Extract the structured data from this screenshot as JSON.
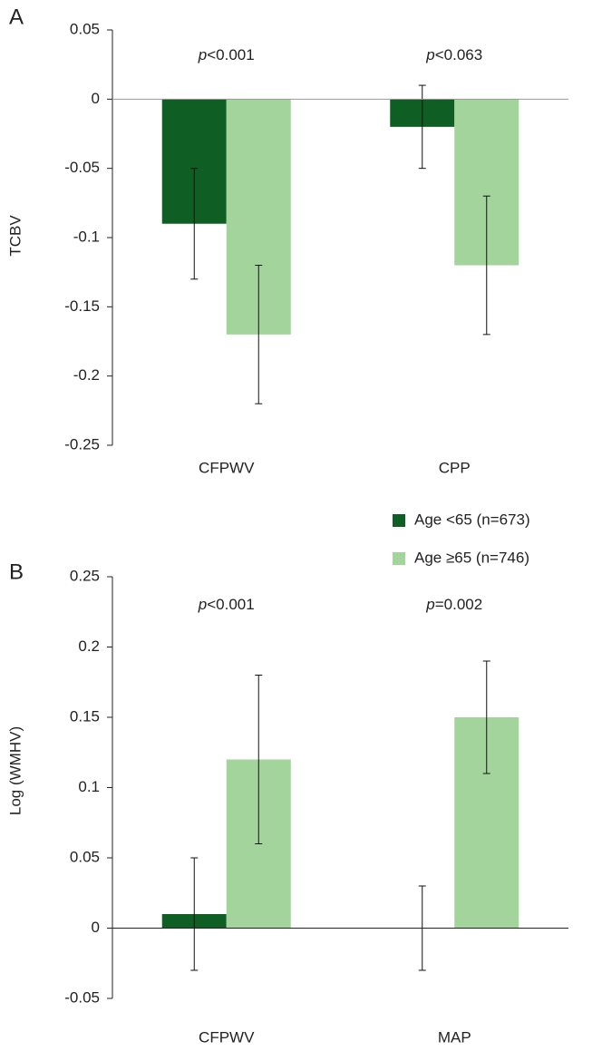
{
  "chart_data": [
    {
      "type": "bar",
      "panel_label": "A",
      "ylabel": "TCBV",
      "categories": [
        "CFPWV",
        "CPP"
      ],
      "annotations": [
        "p<0.001",
        "p<0.063"
      ],
      "series": [
        {
          "color": "#0f5e23",
          "values": [
            -0.09,
            -0.02
          ],
          "errors": [
            0.04,
            0.03
          ]
        },
        {
          "color": "#a3d49b",
          "values": [
            -0.17,
            -0.12
          ],
          "errors": [
            0.05,
            0.05
          ]
        }
      ],
      "ylim": [
        -0.25,
        0.05
      ],
      "yticks": [
        -0.25,
        -0.2,
        -0.15,
        -0.1,
        -0.05,
        0,
        0.05
      ]
    },
    {
      "type": "bar",
      "panel_label": "B",
      "ylabel": "Log (WMHV)",
      "categories": [
        "CFPWV",
        "MAP"
      ],
      "annotations": [
        "p<0.001",
        "p=0.002"
      ],
      "series": [
        {
          "name": "Age <65 (n=673)",
          "color": "#0f5e23",
          "values": [
            0.01,
            0
          ],
          "errors": [
            0.04,
            0.03
          ]
        },
        {
          "name": "Age ≥65 (n=746)",
          "color": "#a3d49b",
          "values": [
            0.12,
            0.15
          ],
          "errors": [
            0.06,
            0.04
          ]
        }
      ],
      "ylim": [
        -0.05,
        0.25
      ],
      "yticks": [
        -0.05,
        0,
        0.05,
        0.1,
        0.15,
        0.2,
        0.25
      ]
    }
  ]
}
